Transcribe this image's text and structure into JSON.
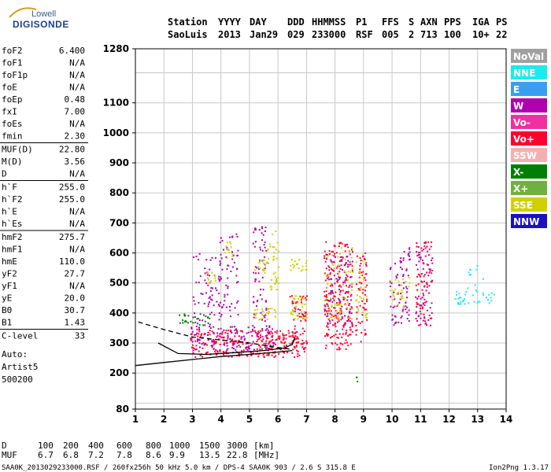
{
  "logo": {
    "brand_top": "Lowell",
    "brand_main": "DIGISONDE"
  },
  "header": {
    "labels": [
      "Station",
      "YYYY",
      "DAY",
      "DDD",
      "HHMMSS",
      "P1",
      "FFS",
      "S",
      "AXN",
      "PPS",
      "IGA",
      "PS"
    ],
    "values": [
      "SaoLuis",
      "2013",
      "Jan29",
      "029",
      "233000",
      "RSF",
      "005",
      "2",
      "713",
      "100",
      "10+",
      "22"
    ]
  },
  "params": [
    {
      "name": "foF2",
      "value": "6.400"
    },
    {
      "name": "foF1",
      "value": "N/A"
    },
    {
      "name": "foF1p",
      "value": "N/A"
    },
    {
      "name": "foE",
      "value": "N/A"
    },
    {
      "name": "foEp",
      "value": "0.48"
    },
    {
      "name": "fxI",
      "value": "7.00"
    },
    {
      "name": "foEs",
      "value": "N/A"
    },
    {
      "name": "fmin",
      "value": "2.30"
    },
    {
      "name": "MUF(D)",
      "value": "22.80"
    },
    {
      "name": "M(D)",
      "value": "3.56"
    },
    {
      "name": "D",
      "value": "N/A"
    },
    {
      "name": "h`F",
      "value": "255.0"
    },
    {
      "name": "h`F2",
      "value": "255.0"
    },
    {
      "name": "h`E",
      "value": "N/A"
    },
    {
      "name": "h`Es",
      "value": "N/A"
    },
    {
      "name": "hmF2",
      "value": "275.7"
    },
    {
      "name": "hmF1",
      "value": "N/A"
    },
    {
      "name": "hmE",
      "value": "110.0"
    },
    {
      "name": "yF2",
      "value": "27.7"
    },
    {
      "name": "yF1",
      "value": "N/A"
    },
    {
      "name": "yE",
      "value": "20.0"
    },
    {
      "name": "B0",
      "value": "30.7"
    },
    {
      "name": "B1",
      "value": "1.43"
    },
    {
      "name": "C-level",
      "value": "33"
    }
  ],
  "autoscale": [
    "Auto:",
    "Artist5",
    "500200"
  ],
  "legend": [
    {
      "label": "NoVal",
      "color": "#a0a0a0"
    },
    {
      "label": "NNE",
      "color": "#20e8f0"
    },
    {
      "label": "E",
      "color": "#3a9ef0"
    },
    {
      "label": "W",
      "color": "#b000b0"
    },
    {
      "label": "Vo-",
      "color": "#f030a0"
    },
    {
      "label": "Vo+",
      "color": "#ff0030"
    },
    {
      "label": "SSW",
      "color": "#f4b0b0"
    },
    {
      "label": "X-",
      "color": "#008000"
    },
    {
      "label": "X+",
      "color": "#70b040"
    },
    {
      "label": "SSE",
      "color": "#d0d000"
    },
    {
      "label": "NNW",
      "color": "#1a10c0"
    }
  ],
  "muf_table": {
    "d_label": "D",
    "d_values": [
      "100",
      "200",
      "400",
      "600",
      "800",
      "1000",
      "1500",
      "3000"
    ],
    "d_unit": "[km]",
    "muf_label": "MUF",
    "muf_values": [
      "6.7",
      "6.8",
      "7.2",
      "7.8",
      "8.6",
      "9.9",
      "13.5",
      "22.8"
    ],
    "muf_unit": "[MHz]"
  },
  "footer": {
    "info": "SAA0K_2013029233000.RSF / 260fx256h 50 kHz 5.0 km / DPS-4 SAA0K 903 / 2.6 S 315.8 E",
    "version": "Ion2Png 1.3.17"
  },
  "chart_data": {
    "type": "scatter",
    "title": "",
    "xlabel": "",
    "ylabel": "",
    "xlim": [
      1,
      14
    ],
    "ylim": [
      80,
      1280
    ],
    "x_ticks": [
      1,
      2,
      3,
      4,
      5,
      6,
      7,
      8,
      9,
      10,
      11,
      12,
      13,
      14
    ],
    "y_ticks": [
      80,
      200,
      300,
      400,
      500,
      600,
      700,
      800,
      900,
      1000,
      1100,
      1280
    ],
    "grid": true,
    "legend_placement": "right",
    "clusters": [
      {
        "x": [
          2.9,
          7.0
        ],
        "y": [
          255,
          345
        ],
        "color": "#ff0030",
        "density": 0.55
      },
      {
        "x": [
          2.9,
          5.9
        ],
        "y": [
          270,
          360
        ],
        "color": "#b000b0",
        "density": 0.35
      },
      {
        "x": [
          2.5,
          3.6
        ],
        "y": [
          360,
          400
        ],
        "color": "#008000",
        "density": 0.45
      },
      {
        "x": [
          3.0,
          4.0
        ],
        "y": [
          340,
          600
        ],
        "color": "#b000b0",
        "density": 0.2
      },
      {
        "x": [
          3.9,
          4.6
        ],
        "y": [
          380,
          680
        ],
        "color": "#b000b0",
        "density": 0.2
      },
      {
        "x": [
          3.5,
          3.8
        ],
        "y": [
          500,
          540
        ],
        "color": "#d0d000",
        "density": 0.6
      },
      {
        "x": [
          4.1,
          4.4
        ],
        "y": [
          580,
          640
        ],
        "color": "#d0d000",
        "density": 0.5
      },
      {
        "x": [
          5.1,
          5.6
        ],
        "y": [
          370,
          690
        ],
        "color": "#b000b0",
        "density": 0.28
      },
      {
        "x": [
          5.1,
          5.9
        ],
        "y": [
          380,
          420
        ],
        "color": "#d0d000",
        "density": 0.6
      },
      {
        "x": [
          5.1,
          5.6
        ],
        "y": [
          530,
          580
        ],
        "color": "#d0d000",
        "density": 0.5
      },
      {
        "x": [
          5.6,
          6.0
        ],
        "y": [
          460,
          680
        ],
        "color": "#d0d000",
        "density": 0.3
      },
      {
        "x": [
          6.4,
          7.0
        ],
        "y": [
          280,
          460
        ],
        "color": "#ff0030",
        "density": 0.45
      },
      {
        "x": [
          6.4,
          7.0
        ],
        "y": [
          380,
          460
        ],
        "color": "#d0d000",
        "density": 0.45
      },
      {
        "x": [
          6.4,
          7.0
        ],
        "y": [
          540,
          580
        ],
        "color": "#d0d000",
        "density": 0.6
      },
      {
        "x": [
          7.6,
          8.6
        ],
        "y": [
          280,
          640
        ],
        "color": "#ff0030",
        "density": 0.45
      },
      {
        "x": [
          7.6,
          8.6
        ],
        "y": [
          360,
          600
        ],
        "color": "#b000b0",
        "density": 0.25
      },
      {
        "x": [
          7.6,
          8.6
        ],
        "y": [
          380,
          620
        ],
        "color": "#d0d000",
        "density": 0.2
      },
      {
        "x": [
          8.7,
          9.1
        ],
        "y": [
          300,
          620
        ],
        "color": "#ff0030",
        "density": 0.35
      },
      {
        "x": [
          8.7,
          9.1
        ],
        "y": [
          380,
          600
        ],
        "color": "#d0d000",
        "density": 0.25
      },
      {
        "x": [
          9.9,
          10.6
        ],
        "y": [
          360,
          620
        ],
        "color": "#b000b0",
        "density": 0.3
      },
      {
        "x": [
          9.9,
          10.6
        ],
        "y": [
          420,
          520
        ],
        "color": "#d0d000",
        "density": 0.3
      },
      {
        "x": [
          10.8,
          11.4
        ],
        "y": [
          360,
          640
        ],
        "color": "#ff0030",
        "density": 0.3
      },
      {
        "x": [
          10.8,
          11.4
        ],
        "y": [
          360,
          640
        ],
        "color": "#b000b0",
        "density": 0.25
      },
      {
        "x": [
          12.1,
          13.6
        ],
        "y": [
          430,
          480
        ],
        "color": "#20e8f0",
        "density": 0.35
      },
      {
        "x": [
          12.6,
          13.2
        ],
        "y": [
          480,
          560
        ],
        "color": "#20e8f0",
        "density": 0.15
      },
      {
        "x": [
          8.7,
          8.8
        ],
        "y": [
          170,
          205
        ],
        "color": "#008000",
        "density": 0.6
      }
    ],
    "curves": [
      {
        "style": "dashed",
        "x": [
          1.1,
          2.0,
          3.0,
          4.0,
          5.0,
          6.0,
          6.4
        ],
        "y": [
          370,
          345,
          320,
          310,
          300,
          285,
          280
        ]
      },
      {
        "style": "solid",
        "x": [
          1.0,
          2.0,
          3.0,
          4.0,
          5.0,
          6.0,
          6.5
        ],
        "y": [
          225,
          235,
          245,
          255,
          262,
          270,
          275
        ]
      },
      {
        "style": "solid",
        "x": [
          1.8,
          2.5,
          3.5,
          4.5,
          5.5,
          6.2,
          6.5,
          6.6
        ],
        "y": [
          300,
          265,
          262,
          268,
          275,
          283,
          295,
          318
        ]
      }
    ]
  }
}
